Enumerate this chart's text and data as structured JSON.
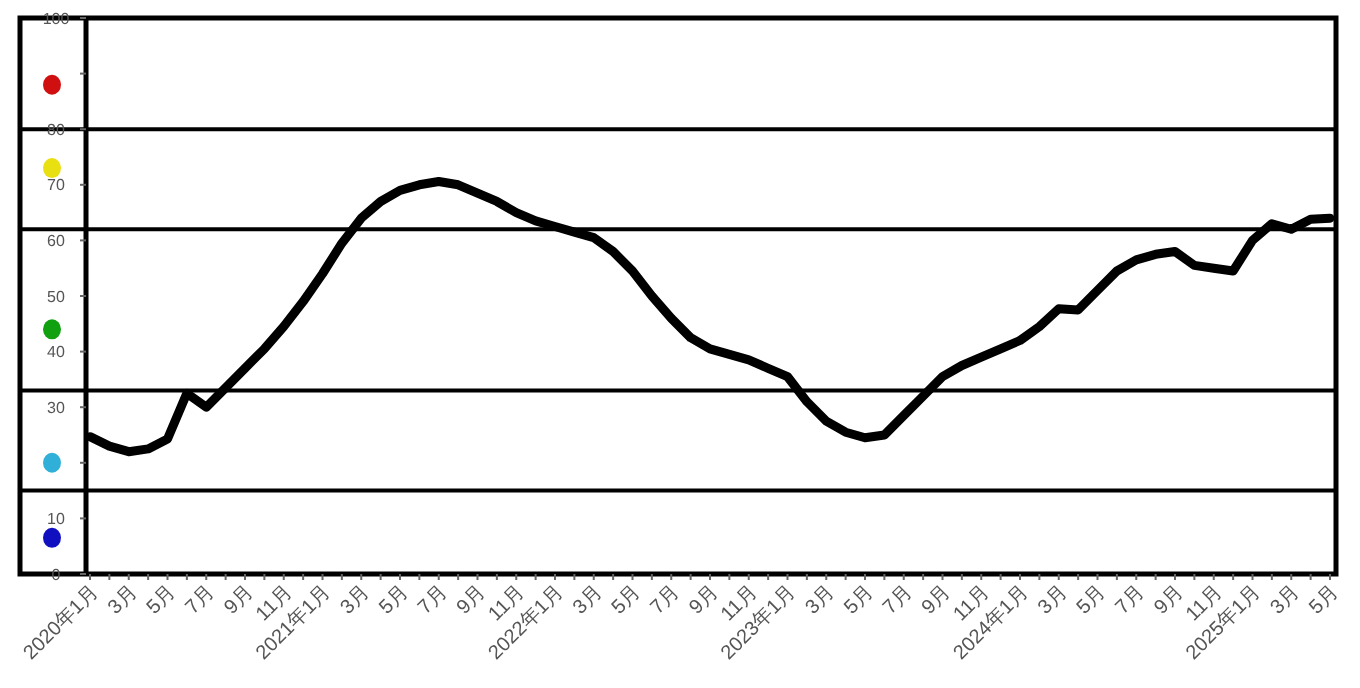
{
  "chart_data": {
    "type": "line",
    "categories": [
      "2020年1月",
      null,
      "3月",
      null,
      "5月",
      null,
      "7月",
      null,
      "9月",
      null,
      "11月",
      null,
      "2021年1月",
      null,
      "3月",
      null,
      "5月",
      null,
      "7月",
      null,
      "9月",
      null,
      "11月",
      null,
      "2022年1月",
      null,
      "3月",
      null,
      "5月",
      null,
      "7月",
      null,
      "9月",
      null,
      "11月",
      null,
      "2023年1月",
      null,
      "3月",
      null,
      "5月",
      null,
      "7月",
      null,
      "9月",
      null,
      "11月",
      null,
      "2024年1月",
      null,
      "3月",
      null,
      "5月",
      null,
      "7月",
      null,
      "9月",
      null,
      "11月",
      null,
      "2025年1月",
      null,
      "3月",
      null,
      "5月"
    ],
    "series": [
      {
        "color": "#000000",
        "values": [
          24.7,
          23,
          22,
          22.5,
          24.3,
          32.5,
          30,
          33.5,
          37,
          40.5,
          44.5,
          49,
          54,
          59.5,
          64,
          67,
          69,
          70,
          70.6,
          70,
          68.5,
          67,
          65,
          63.5,
          62.5,
          61.5,
          60.5,
          58,
          54.5,
          50,
          46,
          42.5,
          40.5,
          39.5,
          38.5,
          37,
          35.5,
          31,
          27.5,
          25.5,
          24.5,
          25,
          28.5,
          32,
          35.5,
          37.5,
          39,
          40.5,
          42,
          44.5,
          47.7,
          47.5,
          51,
          54.5,
          56.5,
          57.5,
          58,
          55.5,
          55,
          54.5,
          60,
          63,
          62,
          63.8,
          64
        ]
      }
    ],
    "ylim": [
      0,
      100
    ],
    "yticks": [
      0,
      10,
      {
        "value": 20,
        "label": null
      },
      30,
      40,
      50,
      60,
      70,
      80,
      {
        "value": 90,
        "label": null
      },
      100
    ],
    "ref_lines": [
      {
        "axis": "y",
        "value": 80,
        "color": "#000000"
      },
      {
        "axis": "y",
        "value": 62,
        "color": "#000000"
      },
      {
        "axis": "y",
        "value": 33,
        "color": "#000000"
      },
      {
        "axis": "y",
        "value": 15,
        "color": "#000000"
      }
    ],
    "grid": false,
    "marker": "none",
    "line_style": "solid"
  }
}
